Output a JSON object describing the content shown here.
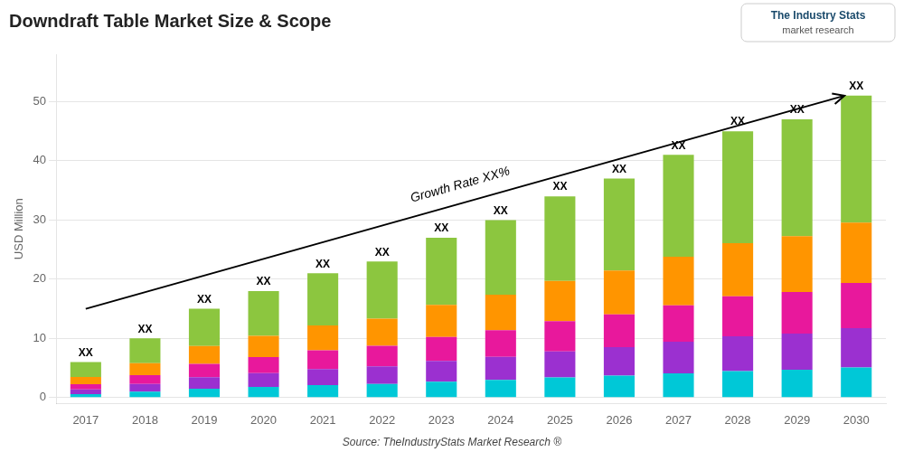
{
  "chart_data": {
    "type": "bar",
    "stacked": true,
    "title": "Downdraft Table Market Size & Scope",
    "y_label": "USD Million",
    "source": "Source: TheIndustryStats Market Research ®",
    "logo_lines": [
      "The Industry Stats",
      "market research"
    ],
    "categories": [
      "2017",
      "2018",
      "2019",
      "2020",
      "2021",
      "2022",
      "2023",
      "2024",
      "2025",
      "2026",
      "2027",
      "2028",
      "2029",
      "2030"
    ],
    "series": [
      {
        "color": "#00c8d7",
        "values": [
          0.6,
          1,
          1.5,
          1.8,
          2.1,
          2.3,
          2.7,
          3,
          3.4,
          3.7,
          4.1,
          4.5,
          4.7,
          5.1
        ]
      },
      {
        "color": "#9b30d0",
        "values": [
          0.78,
          1.3,
          1.95,
          2.34,
          2.73,
          2.99,
          3.51,
          3.9,
          4.42,
          4.81,
          5.33,
          5.85,
          6.11,
          6.63
        ]
      },
      {
        "color": "#e8189c",
        "values": [
          0.9,
          1.5,
          2.25,
          2.7,
          3.15,
          3.45,
          4.05,
          4.5,
          5.1,
          5.55,
          6.15,
          6.75,
          7.05,
          7.65
        ]
      },
      {
        "color": "#ff9500",
        "values": [
          1.2,
          2,
          3,
          3.6,
          4.2,
          4.6,
          5.4,
          6,
          6.8,
          7.4,
          8.2,
          9,
          9.4,
          10.2
        ]
      },
      {
        "color": "#8cc63f",
        "values": [
          2.52,
          4.2,
          6.3,
          7.56,
          8.82,
          9.66,
          11.34,
          12.6,
          14.28,
          15.54,
          17.22,
          18.9,
          19.74,
          21.42
        ]
      }
    ],
    "ylim": [
      -1,
      58
    ],
    "yticks": [
      0,
      10,
      20,
      30,
      40,
      50
    ],
    "grid": true,
    "annotations": [
      {
        "type": "arrow",
        "x": 0,
        "y": 15,
        "x_end": 12.8,
        "y_end": 51
      },
      {
        "type": "text",
        "text": "Growth Rate XX%",
        "x": 5.5,
        "y": 33
      },
      {
        "type": "bar_label",
        "text": "XX",
        "category": "2017"
      },
      {
        "type": "bar_label",
        "text": "XX",
        "category": "2018"
      },
      {
        "type": "bar_label",
        "text": "XX",
        "category": "2019"
      },
      {
        "type": "bar_label",
        "text": "XX",
        "category": "2020"
      },
      {
        "type": "bar_label",
        "text": "XX",
        "category": "2021"
      },
      {
        "type": "bar_label",
        "text": "XX",
        "category": "2022"
      },
      {
        "type": "bar_label",
        "text": "XX",
        "category": "2023"
      },
      {
        "type": "bar_label",
        "text": "XX",
        "category": "2024"
      },
      {
        "type": "bar_label",
        "text": "XX",
        "category": "2025"
      },
      {
        "type": "bar_label",
        "text": "XX",
        "category": "2026"
      },
      {
        "type": "bar_label",
        "text": "XX",
        "category": "2027"
      },
      {
        "type": "bar_label",
        "text": "XX",
        "category": "2028"
      },
      {
        "type": "bar_label",
        "text": "XX",
        "category": "2029"
      },
      {
        "type": "bar_label",
        "text": "XX",
        "category": "2030"
      }
    ]
  }
}
